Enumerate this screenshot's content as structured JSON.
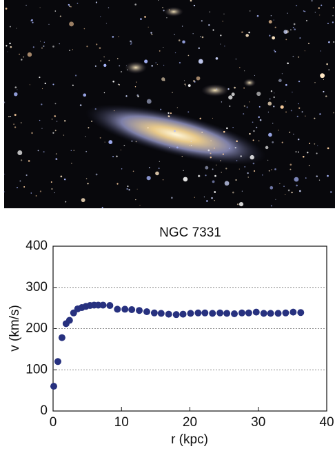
{
  "chart_data": {
    "type": "scatter",
    "title": "NGC 7331",
    "x_label": "r (kpc)",
    "y_label": "v (km/s)",
    "x": [
      0.1,
      0.7,
      1.3,
      1.9,
      2.4,
      3.0,
      3.6,
      4.2,
      4.8,
      5.4,
      6.0,
      6.6,
      7.3,
      8.3,
      9.4,
      10.5,
      11.5,
      12.6,
      13.7,
      14.8,
      15.8,
      16.9,
      18.0,
      19.0,
      20.1,
      21.2,
      22.2,
      23.3,
      24.4,
      25.4,
      26.5,
      27.6,
      28.6,
      29.7,
      30.8,
      31.8,
      32.9,
      34.0,
      35.1,
      36.2
    ],
    "values": [
      60,
      120,
      178,
      212,
      220,
      238,
      248,
      251,
      254,
      256,
      257,
      257,
      257,
      256,
      247,
      247,
      246,
      244,
      241,
      238,
      237,
      235,
      234,
      235,
      237,
      238,
      238,
      237,
      238,
      237,
      236,
      238,
      238,
      240,
      237,
      237,
      237,
      238,
      240,
      239
    ],
    "color": "#27317f",
    "xlim": [
      0,
      40
    ],
    "xticks": [
      0,
      10,
      20,
      30,
      40
    ],
    "ylim": [
      0,
      400
    ],
    "yticks": [
      0,
      100,
      200,
      300,
      400
    ],
    "grid": true
  }
}
